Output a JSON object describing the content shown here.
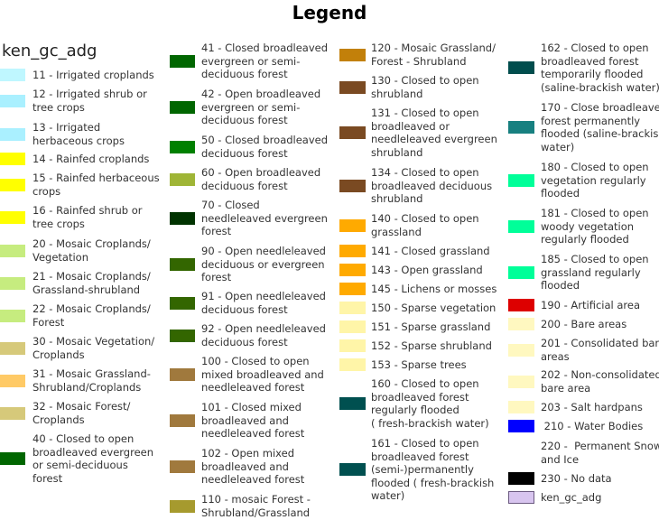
{
  "title": "Legend",
  "layer_name": "ken_gc_adg",
  "items": [
    {
      "label": [
        "11 - Irrigated croplands"
      ],
      "color": "#bff7ff"
    },
    {
      "label": [
        "12 - Irrigated shrub or",
        "tree crops"
      ],
      "color": "#aaf0ff"
    },
    {
      "label": [
        "13 - Irrigated",
        "herbaceous crops"
      ],
      "color": "#aaf0ff"
    },
    {
      "label": [
        "14 - Rainfed croplands"
      ],
      "color": "#ffff00"
    },
    {
      "label": [
        "15 - Rainfed herbaceous",
        "crops"
      ],
      "color": "#ffff00"
    },
    {
      "label": [
        "16 - Rainfed shrub or",
        "tree crops"
      ],
      "color": "#ffff00"
    },
    {
      "label": [
        "20 - Mosaic Croplands/",
        "Vegetation"
      ],
      "color": "#c6ec7f"
    },
    {
      "label": [
        "21 - Mosaic Croplands/",
        "Grassland-shrubland"
      ],
      "color": "#c6ec7f"
    },
    {
      "label": [
        "22 - Mosaic Croplands/",
        "Forest"
      ],
      "color": "#c6ec7f"
    },
    {
      "label": [
        "30 - Mosaic Vegetation/",
        "Croplands"
      ],
      "color": "#d6c97a"
    },
    {
      "label": [
        "31 - Mosaic Grassland-",
        "Shrubland/Croplands"
      ],
      "color": "#ffca66"
    },
    {
      "label": [
        "32 - Mosaic Forest/",
        "Croplands"
      ],
      "color": "#d6c97a"
    },
    {
      "label": [
        "40 - Closed to open",
        "broadleaved evergreen",
        "or semi-deciduous",
        "forest"
      ],
      "color": "#006600"
    },
    {
      "label": [
        "41 - Closed broadleaved",
        "evergreen or semi-",
        "deciduous forest"
      ],
      "color": "#006600"
    },
    {
      "label": [
        "42 - Open broadleaved",
        "evergreen or semi-",
        "deciduous forest"
      ],
      "color": "#006600"
    },
    {
      "label": [
        "50 - Closed broadleaved",
        "deciduous forest"
      ],
      "color": "#008000"
    },
    {
      "label": [
        "60 - Open broadleaved",
        "deciduous forest"
      ],
      "color": "#9fb536"
    },
    {
      "label": [
        "70 - Closed",
        "needleleaved evergreen",
        "forest"
      ],
      "color": "#003300"
    },
    {
      "label": [
        "90 - Open needleleaved",
        "deciduous or evergreen",
        "forest"
      ],
      "color": "#336600"
    },
    {
      "label": [
        "91 - Open needleleaved",
        "deciduous forest"
      ],
      "color": "#336600"
    },
    {
      "label": [
        "92 - Open needleleaved",
        "deciduous forest"
      ],
      "color": "#336600"
    },
    {
      "label": [
        "100 - Closed to open",
        "mixed broadleaved and",
        "needleleaved forest"
      ],
      "color": "#a0793d"
    },
    {
      "label": [
        "101 - Closed mixed",
        "broadleaved and",
        "needleleaved forest"
      ],
      "color": "#a0793d"
    },
    {
      "label": [
        "102 - Open mixed",
        "broadleaved and",
        "needleleaved forest"
      ],
      "color": "#a0793d"
    },
    {
      "label": [
        "110 - mosaic Forest -",
        "Shrubland/Grassland"
      ],
      "color": "#a69a2e"
    },
    {
      "label": [
        "120 - Mosaic Grassland/",
        "Forest - Shrubland"
      ],
      "color": "#c2800a"
    },
    {
      "label": [
        "130 - Closed to open",
        "shrubland"
      ],
      "color": "#7a4a22"
    },
    {
      "label": [
        "131 - Closed to open",
        "broadleaved or",
        "needleleaved evergreen",
        "shrubland"
      ],
      "color": "#7a4a22"
    },
    {
      "label": [
        "134 - Closed to open",
        "broadleaved deciduous",
        "shrubland"
      ],
      "color": "#7a4a22"
    },
    {
      "label": [
        "140 - Closed to open",
        "grassland"
      ],
      "color": "#ffaa00"
    },
    {
      "label": [
        "141 - Closed grassland"
      ],
      "color": "#ffaa00"
    },
    {
      "label": [
        "143 - Open grassland"
      ],
      "color": "#ffaa00"
    },
    {
      "label": [
        "145 - Lichens or mosses"
      ],
      "color": "#ffaa00"
    },
    {
      "label": [
        "150 - Sparse vegetation"
      ],
      "color": "#fff5a8"
    },
    {
      "label": [
        "151 - Sparse grassland"
      ],
      "color": "#fff5a8"
    },
    {
      "label": [
        "152 - Sparse shrubland"
      ],
      "color": "#fff5a8"
    },
    {
      "label": [
        "153 - Sparse trees"
      ],
      "color": "#fff5a8"
    },
    {
      "label": [
        "160 - Closed to open",
        "broadleaved forest",
        "regularly flooded",
        "( fresh-brackish water)"
      ],
      "color": "#005050"
    },
    {
      "label": [
        "161 - Closed to open",
        "broadleaved forest",
        "(semi-)permanently",
        "flooded ( fresh-brackish",
        "water)"
      ],
      "color": "#005050"
    },
    {
      "label": [
        "162 - Closed to open",
        "broadleaved forest",
        "temporarily flooded",
        "(saline-brackish water)"
      ],
      "color": "#004d4d"
    },
    {
      "label": [
        "170 - Close broadleaved",
        "forest permanently",
        "flooded (saline-brackish",
        "water)"
      ],
      "color": "#178080"
    },
    {
      "label": [
        "180 - Closed to open",
        "vegetation regularly",
        "flooded"
      ],
      "color": "#00ff99"
    },
    {
      "label": [
        "181 - Closed to open",
        "woody vegetation",
        "regularly flooded"
      ],
      "color": "#00ff99"
    },
    {
      "label": [
        "185 - Closed to open",
        "grassland regularly",
        "flooded"
      ],
      "color": "#00ff99"
    },
    {
      "label": [
        "190 - Artificial area"
      ],
      "color": "#dd0000"
    },
    {
      "label": [
        "200 - Bare areas"
      ],
      "color": "#fff8c0"
    },
    {
      "label": [
        "201 - Consolidated bare",
        "areas"
      ],
      "color": "#fff8c0"
    },
    {
      "label": [
        "202 - Non-consolidated",
        "bare area"
      ],
      "color": "#fff8c0"
    },
    {
      "label": [
        "203 - Salt hardpans"
      ],
      "color": "#fff8c0"
    },
    {
      "label": [
        " 210 - Water Bodies"
      ],
      "color": "#0000ff"
    },
    {
      "label": [
        "220 -  Permanent Snow",
        "and Ice"
      ],
      "color": "#ffffff"
    },
    {
      "label": [
        "230 - No data"
      ],
      "color": "#000000"
    },
    {
      "label": [
        "ken_gc_adg"
      ],
      "color": "#d8c5ef"
    }
  ]
}
